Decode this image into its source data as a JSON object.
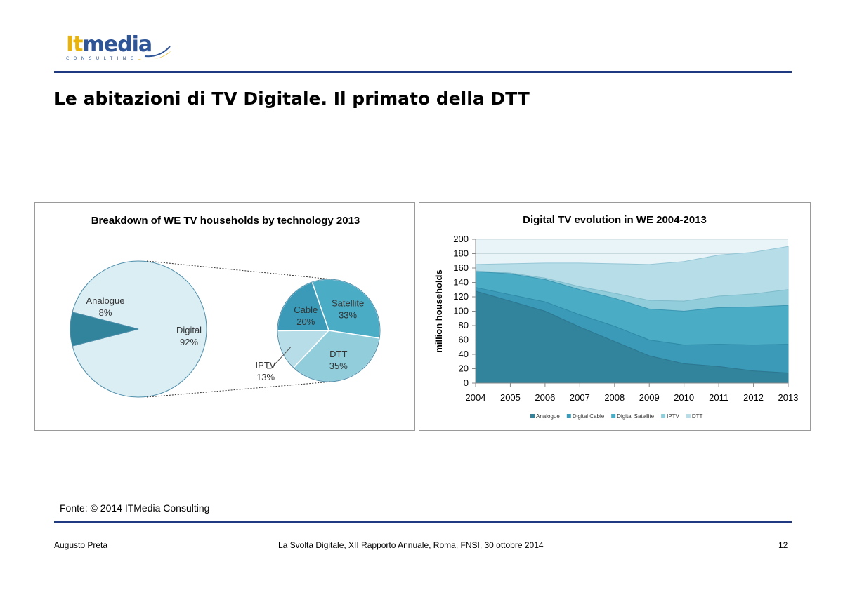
{
  "logo": {
    "brand_it": "It",
    "brand_media": "media",
    "tagline": "CONSULTING"
  },
  "slide": {
    "title": "Le abitazioni di TV Digitale. Il primato della DTT",
    "source": "Fonte: © 2014 ITMedia Consulting"
  },
  "footer": {
    "author": "Augusto Preta",
    "event": "La Svolta Digitale, XII Rapporto Annuale, Roma, FNSI, 30 ottobre 2014",
    "page": "12"
  },
  "colors": {
    "rule": "#1f3a80",
    "analogue": "#31849b",
    "cable": "#3a9ab8",
    "satellite": "#4bacc6",
    "iptv": "#92cddc",
    "dtt": "#b7dee8",
    "digital": "#dbeef4"
  },
  "chart_data": [
    {
      "type": "pie",
      "title": "Breakdown of WE TV households by technology 2013",
      "main_slices": [
        {
          "label": "Analogue",
          "value": 8,
          "display": "8%"
        },
        {
          "label": "Digital",
          "value": 92,
          "display": "92%"
        }
      ],
      "breakdown_of": "Digital",
      "sub_slices": [
        {
          "label": "Satellite",
          "value": 33,
          "display": "33%"
        },
        {
          "label": "DTT",
          "value": 35,
          "display": "35%"
        },
        {
          "label": "IPTV",
          "value": 13,
          "display": "13%"
        },
        {
          "label": "Cable",
          "value": 20,
          "display": "20%"
        }
      ]
    },
    {
      "type": "area",
      "stacked": true,
      "title": "Digital TV evolution in WE 2004-2013",
      "xlabel": "",
      "ylabel": "million households",
      "ylim": [
        0,
        200
      ],
      "yticks": [
        0,
        20,
        40,
        60,
        80,
        100,
        120,
        140,
        160,
        180,
        200
      ],
      "grid": true,
      "legend_position": "bottom",
      "x": [
        "2004",
        "2005",
        "2006",
        "2007",
        "2008",
        "2009",
        "2010",
        "2011",
        "2012",
        "2013"
      ],
      "series": [
        {
          "name": "Analogue",
          "values": [
            128,
            114,
            100,
            78,
            58,
            38,
            27,
            23,
            17,
            14
          ]
        },
        {
          "name": "Digital Cable",
          "values": [
            5,
            9,
            13,
            17,
            21,
            22,
            26,
            31,
            36,
            40
          ]
        },
        {
          "name": "Digital Satellite",
          "values": [
            22,
            29,
            31,
            35,
            39,
            43,
            47,
            51,
            53,
            54
          ]
        },
        {
          "name": "IPTV",
          "values": [
            1,
            1,
            2,
            4,
            7,
            12,
            14,
            16,
            18,
            22
          ]
        },
        {
          "name": "DTT",
          "values": [
            9,
            13,
            21,
            33,
            41,
            50,
            55,
            57,
            58,
            60
          ]
        }
      ]
    }
  ]
}
